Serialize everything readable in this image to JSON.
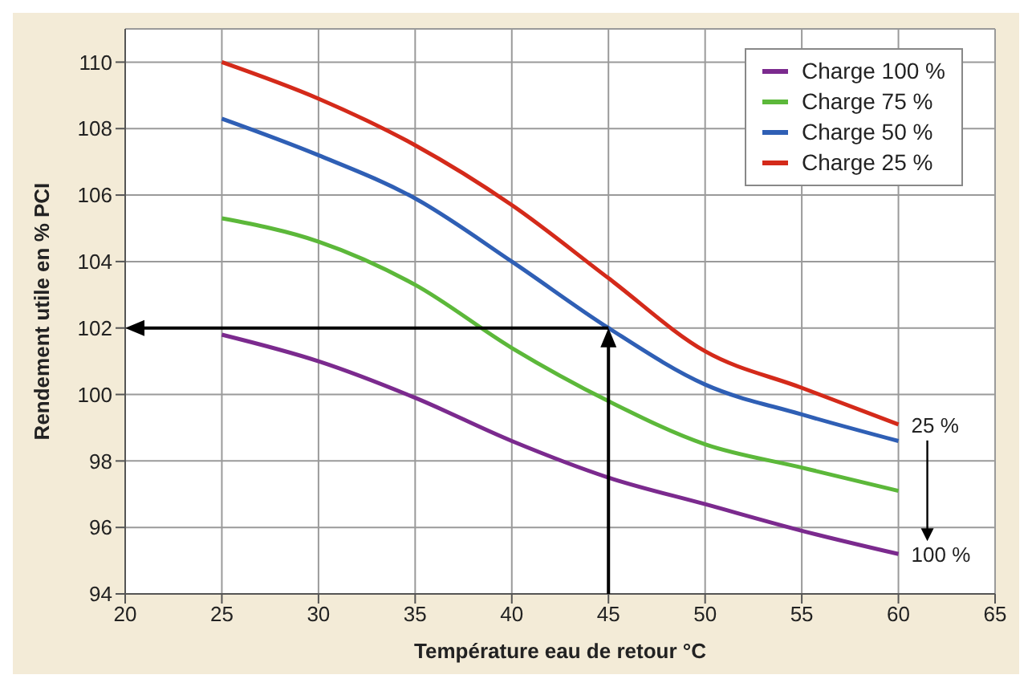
{
  "chart_data": {
    "type": "line",
    "xlabel": "Température eau de retour °C",
    "ylabel": "Rendement utile en % PCI",
    "x": [
      25,
      30,
      35,
      40,
      45,
      50,
      55,
      60
    ],
    "series": [
      {
        "name": "Charge 100 %",
        "color": "#7b2a8e",
        "values": [
          101.8,
          101.0,
          99.9,
          98.6,
          97.5,
          96.7,
          95.9,
          95.2
        ]
      },
      {
        "name": "Charge 75 %",
        "color": "#5cb83a",
        "values": [
          105.3,
          104.6,
          103.3,
          101.4,
          99.8,
          98.5,
          97.8,
          97.1
        ]
      },
      {
        "name": "Charge 50 %",
        "color": "#2f5fb5",
        "values": [
          108.3,
          107.2,
          105.9,
          104.0,
          102.0,
          100.3,
          99.4,
          98.6
        ]
      },
      {
        "name": "Charge 25 %",
        "color": "#d42a1a",
        "values": [
          110.0,
          108.9,
          107.5,
          105.7,
          103.5,
          101.3,
          100.2,
          99.1
        ]
      }
    ],
    "xlim": [
      20,
      65
    ],
    "xticks": [
      20,
      25,
      30,
      35,
      40,
      45,
      50,
      55,
      60,
      65
    ],
    "ylim": [
      94,
      111
    ],
    "yticks": [
      94,
      96,
      98,
      100,
      102,
      104,
      106,
      108,
      110
    ],
    "grid": true,
    "legend": "top right",
    "annotations": [
      {
        "text": "25 %",
        "x": 60,
        "y": 99.1
      },
      {
        "text": "100 %",
        "x": 60,
        "y": 95.2
      }
    ]
  }
}
